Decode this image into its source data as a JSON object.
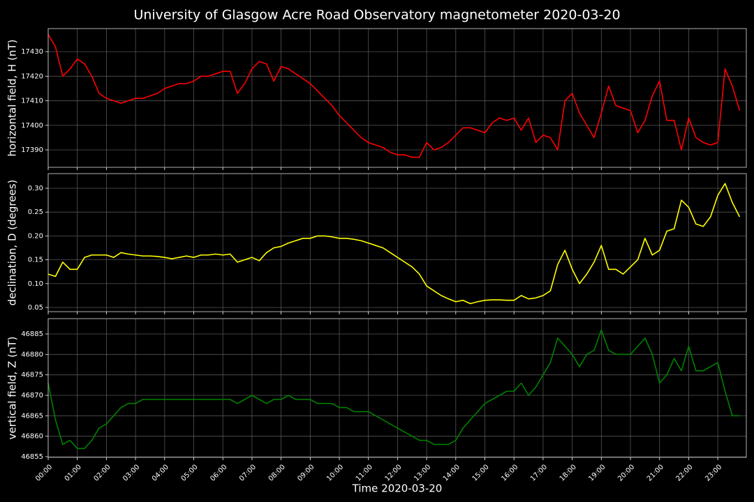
{
  "chart_data": [
    {
      "type": "line",
      "title": "University of Glasgow Acre Road Observatory magnetometer 2020-03-20",
      "ylabel": "horizontal field, H (nT)",
      "color": "red",
      "grid": true,
      "xlim": [
        0,
        23.98
      ],
      "ylim": [
        17382.9,
        17439.4
      ],
      "yticks": [
        17390,
        17400,
        17410,
        17420,
        17430
      ],
      "x": [
        0,
        0.25,
        0.5,
        0.75,
        1,
        1.25,
        1.5,
        1.75,
        2,
        2.25,
        2.5,
        2.75,
        3,
        3.25,
        3.5,
        3.75,
        4,
        4.25,
        4.5,
        4.75,
        5,
        5.25,
        5.5,
        5.75,
        6,
        6.25,
        6.5,
        6.75,
        7,
        7.25,
        7.5,
        7.75,
        8,
        8.25,
        8.5,
        8.75,
        9,
        9.25,
        9.5,
        9.75,
        10,
        10.25,
        10.5,
        10.75,
        11,
        11.25,
        11.5,
        11.75,
        12,
        12.25,
        12.5,
        12.75,
        13,
        13.25,
        13.5,
        13.75,
        14,
        14.25,
        14.5,
        14.75,
        15,
        15.25,
        15.5,
        15.75,
        16,
        16.25,
        16.5,
        16.75,
        17,
        17.25,
        17.5,
        17.75,
        18,
        18.25,
        18.5,
        18.75,
        19,
        19.25,
        19.5,
        19.75,
        20,
        20.25,
        20.5,
        20.75,
        21,
        21.25,
        21.5,
        21.75,
        22,
        22.25,
        22.5,
        22.75,
        23,
        23.25,
        23.5,
        23.75
      ],
      "values": [
        17437,
        17432,
        17420,
        17423,
        17427,
        17425,
        17420,
        17413,
        17411,
        17410,
        17409,
        17410,
        17411,
        17411,
        17412,
        17413,
        17415,
        17416,
        17417,
        17417,
        17418,
        17420,
        17420,
        17421,
        17422,
        17422,
        17413,
        17417,
        17423,
        17426,
        17425,
        17418,
        17424,
        17423,
        17421,
        17419,
        17417,
        17414,
        17411,
        17408,
        17404,
        17401,
        17398,
        17395,
        17393,
        17392,
        17391,
        17389,
        17388,
        17388,
        17387,
        17387,
        17393,
        17390,
        17391,
        17393,
        17396,
        17399,
        17399,
        17398,
        17397,
        17401,
        17403,
        17402,
        17403,
        17398,
        17403,
        17393,
        17396,
        17395,
        17390,
        17410,
        17413,
        17405,
        17400,
        17395,
        17405,
        17416,
        17408,
        17407,
        17406,
        17397,
        17402,
        17412,
        17418,
        17402,
        17402,
        17390,
        17403,
        17395,
        17393,
        17392,
        17393,
        17423,
        17416,
        17406
      ]
    },
    {
      "type": "line",
      "ylabel": "declination, D (degrees)",
      "color": "yellow",
      "grid": true,
      "xlim": [
        0,
        23.98
      ],
      "ylim": [
        0.0412,
        0.3307
      ],
      "yticks": [
        0.05,
        {
          "value": 0.1,
          "label": "0.10"
        },
        0.15,
        {
          "value": 0.2,
          "label": "0.20"
        },
        0.25,
        {
          "value": 0.3,
          "label": "0.30"
        }
      ],
      "x": [
        0,
        0.25,
        0.5,
        0.75,
        1,
        1.25,
        1.5,
        1.75,
        2,
        2.25,
        2.5,
        2.75,
        3,
        3.25,
        3.5,
        3.75,
        4,
        4.25,
        4.5,
        4.75,
        5,
        5.25,
        5.5,
        5.75,
        6,
        6.25,
        6.5,
        6.75,
        7,
        7.25,
        7.5,
        7.75,
        8,
        8.25,
        8.5,
        8.75,
        9,
        9.25,
        9.5,
        9.75,
        10,
        10.25,
        10.5,
        10.75,
        11,
        11.25,
        11.5,
        11.75,
        12,
        12.25,
        12.5,
        12.75,
        13,
        13.25,
        13.5,
        13.75,
        14,
        14.25,
        14.5,
        14.75,
        15,
        15.25,
        15.5,
        15.75,
        16,
        16.25,
        16.5,
        16.75,
        17,
        17.25,
        17.5,
        17.75,
        18,
        18.25,
        18.5,
        18.75,
        19,
        19.25,
        19.5,
        19.75,
        20,
        20.25,
        20.5,
        20.75,
        21,
        21.25,
        21.5,
        21.75,
        22,
        22.25,
        22.5,
        22.75,
        23,
        23.25,
        23.5,
        23.75
      ],
      "values": [
        0.12,
        0.115,
        0.145,
        0.13,
        0.13,
        0.155,
        0.16,
        0.16,
        0.16,
        0.155,
        0.165,
        0.162,
        0.16,
        0.158,
        0.158,
        0.157,
        0.155,
        0.152,
        0.155,
        0.158,
        0.155,
        0.16,
        0.16,
        0.162,
        0.16,
        0.162,
        0.145,
        0.15,
        0.155,
        0.148,
        0.165,
        0.175,
        0.178,
        0.185,
        0.19,
        0.195,
        0.195,
        0.2,
        0.2,
        0.198,
        0.195,
        0.195,
        0.193,
        0.19,
        0.185,
        0.18,
        0.175,
        0.165,
        0.155,
        0.145,
        0.135,
        0.12,
        0.095,
        0.085,
        0.075,
        0.068,
        0.062,
        0.065,
        0.058,
        0.062,
        0.065,
        0.066,
        0.066,
        0.065,
        0.065,
        0.075,
        0.068,
        0.07,
        0.075,
        0.085,
        0.14,
        0.17,
        0.13,
        0.1,
        0.12,
        0.145,
        0.18,
        0.13,
        0.13,
        0.12,
        0.135,
        0.15,
        0.195,
        0.16,
        0.17,
        0.21,
        0.215,
        0.275,
        0.26,
        0.225,
        0.22,
        0.24,
        0.285,
        0.31,
        0.27,
        0.24
      ]
    },
    {
      "type": "line",
      "ylabel": "vertical field, Z (nT)",
      "xlabel": "Time 2020-03-20",
      "color": "green",
      "grid": true,
      "xlim": [
        0,
        23.98
      ],
      "ylim": [
        46854.83,
        46888.75
      ],
      "yticks": [
        46855,
        46860,
        46865,
        46870,
        46875,
        46880,
        46885
      ],
      "xticks": [
        {
          "value": 0,
          "label": "00:00"
        },
        {
          "value": 1,
          "label": "01:00"
        },
        {
          "value": 2,
          "label": "02:00"
        },
        {
          "value": 3,
          "label": "03:00"
        },
        {
          "value": 4,
          "label": "04:00"
        },
        {
          "value": 5,
          "label": "05:00"
        },
        {
          "value": 6,
          "label": "06:00"
        },
        {
          "value": 7,
          "label": "07:00"
        },
        {
          "value": 8,
          "label": "08:00"
        },
        {
          "value": 9,
          "label": "09:00"
        },
        {
          "value": 10,
          "label": "10:00"
        },
        {
          "value": 11,
          "label": "11:00"
        },
        {
          "value": 12,
          "label": "12:00"
        },
        {
          "value": 13,
          "label": "13:00"
        },
        {
          "value": 14,
          "label": "14:00"
        },
        {
          "value": 15,
          "label": "15:00"
        },
        {
          "value": 16,
          "label": "16:00"
        },
        {
          "value": 17,
          "label": "17:00"
        },
        {
          "value": 18,
          "label": "18:00"
        },
        {
          "value": 19,
          "label": "19:00"
        },
        {
          "value": 20,
          "label": "20:00"
        },
        {
          "value": 21,
          "label": "21:00"
        },
        {
          "value": 22,
          "label": "22:00"
        },
        {
          "value": 23,
          "label": "23:00"
        }
      ],
      "x": [
        0,
        0.25,
        0.5,
        0.75,
        1,
        1.25,
        1.5,
        1.75,
        2,
        2.25,
        2.5,
        2.75,
        3,
        3.25,
        3.5,
        3.75,
        4,
        4.25,
        4.5,
        4.75,
        5,
        5.25,
        5.5,
        5.75,
        6,
        6.25,
        6.5,
        6.75,
        7,
        7.25,
        7.5,
        7.75,
        8,
        8.25,
        8.5,
        8.75,
        9,
        9.25,
        9.5,
        9.75,
        10,
        10.25,
        10.5,
        10.75,
        11,
        11.25,
        11.5,
        11.75,
        12,
        12.25,
        12.5,
        12.75,
        13,
        13.25,
        13.5,
        13.75,
        14,
        14.25,
        14.5,
        14.75,
        15,
        15.25,
        15.5,
        15.75,
        16,
        16.25,
        16.5,
        16.75,
        17,
        17.25,
        17.5,
        17.75,
        18,
        18.25,
        18.5,
        18.75,
        19,
        19.25,
        19.5,
        19.75,
        20,
        20.25,
        20.5,
        20.75,
        21,
        21.25,
        21.5,
        21.75,
        22,
        22.25,
        22.5,
        22.75,
        23,
        23.25,
        23.5,
        23.75
      ],
      "values": [
        46873,
        46864,
        46858,
        46859,
        46857,
        46857,
        46859,
        46862,
        46863,
        46865,
        46867,
        46868,
        46868,
        46869,
        46869,
        46869,
        46869,
        46869,
        46869,
        46869,
        46869,
        46869,
        46869,
        46869,
        46869,
        46869,
        46868,
        46869,
        46870,
        46869,
        46868,
        46869,
        46869,
        46870,
        46869,
        46869,
        46869,
        46868,
        46868,
        46868,
        46867,
        46867,
        46866,
        46866,
        46866,
        46865,
        46864,
        46863,
        46862,
        46861,
        46860,
        46859,
        46859,
        46858,
        46858,
        46858,
        46859,
        46862,
        46864,
        46866,
        46868,
        46869,
        46870,
        46871,
        46871,
        46873,
        46870,
        46872,
        46875,
        46878,
        46884,
        46882,
        46880,
        46877,
        46880,
        46881,
        46886,
        46881,
        46880,
        46880,
        46880,
        46882,
        46884,
        46880,
        46873,
        46875,
        46879,
        46876,
        46882,
        46876,
        46876,
        46877,
        46878,
        46871,
        46865,
        46865
      ]
    }
  ]
}
